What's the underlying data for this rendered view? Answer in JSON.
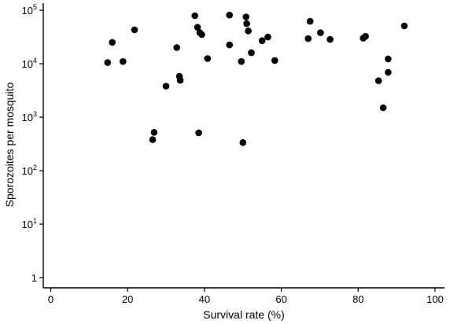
{
  "chart_data": {
    "type": "scatter",
    "title": "",
    "xlabel": "Survival rate (%)",
    "ylabel": "Sporozoites per mosquito",
    "xlim": [
      0,
      100
    ],
    "ylim": [
      1,
      100000
    ],
    "yscale": "log",
    "grid": false,
    "legend": "none",
    "x_ticks": [
      0,
      20,
      40,
      60,
      80,
      100
    ],
    "x_tick_labels": [
      "0",
      "20",
      "40",
      "60",
      "80",
      "100"
    ],
    "y_ticks": [
      {
        "value": 1,
        "base": "1",
        "exp": ""
      },
      {
        "value": 10,
        "base": "10",
        "exp": "1"
      },
      {
        "value": 100,
        "base": "10",
        "exp": "2"
      },
      {
        "value": 1000,
        "base": "10",
        "exp": "3"
      },
      {
        "value": 10000,
        "base": "10",
        "exp": "4"
      },
      {
        "value": 100000,
        "base": "10",
        "exp": "5"
      }
    ],
    "marker_color": "#000000",
    "points": [
      {
        "x": 14.8,
        "y": 10500
      },
      {
        "x": 16.0,
        "y": 25000
      },
      {
        "x": 18.8,
        "y": 11000
      },
      {
        "x": 21.8,
        "y": 43000
      },
      {
        "x": 26.5,
        "y": 380
      },
      {
        "x": 26.9,
        "y": 520
      },
      {
        "x": 30.0,
        "y": 3800
      },
      {
        "x": 32.8,
        "y": 20000
      },
      {
        "x": 33.5,
        "y": 5800
      },
      {
        "x": 33.7,
        "y": 4900
      },
      {
        "x": 37.5,
        "y": 79000
      },
      {
        "x": 38.2,
        "y": 48000
      },
      {
        "x": 38.5,
        "y": 510
      },
      {
        "x": 38.8,
        "y": 38000
      },
      {
        "x": 39.3,
        "y": 35000
      },
      {
        "x": 40.8,
        "y": 12500
      },
      {
        "x": 46.5,
        "y": 81000
      },
      {
        "x": 46.5,
        "y": 22500
      },
      {
        "x": 49.6,
        "y": 11000
      },
      {
        "x": 50.0,
        "y": 335
      },
      {
        "x": 50.8,
        "y": 75000
      },
      {
        "x": 51.0,
        "y": 56000
      },
      {
        "x": 51.4,
        "y": 41000
      },
      {
        "x": 52.2,
        "y": 16000
      },
      {
        "x": 55.0,
        "y": 27000
      },
      {
        "x": 56.5,
        "y": 31500
      },
      {
        "x": 58.3,
        "y": 11500
      },
      {
        "x": 67.0,
        "y": 29500
      },
      {
        "x": 67.5,
        "y": 62000
      },
      {
        "x": 70.2,
        "y": 38000
      },
      {
        "x": 72.7,
        "y": 28500
      },
      {
        "x": 81.3,
        "y": 30000
      },
      {
        "x": 81.9,
        "y": 32500
      },
      {
        "x": 85.3,
        "y": 4800
      },
      {
        "x": 86.5,
        "y": 1500
      },
      {
        "x": 87.8,
        "y": 12300
      },
      {
        "x": 87.8,
        "y": 6900
      },
      {
        "x": 92.0,
        "y": 51000
      }
    ]
  }
}
